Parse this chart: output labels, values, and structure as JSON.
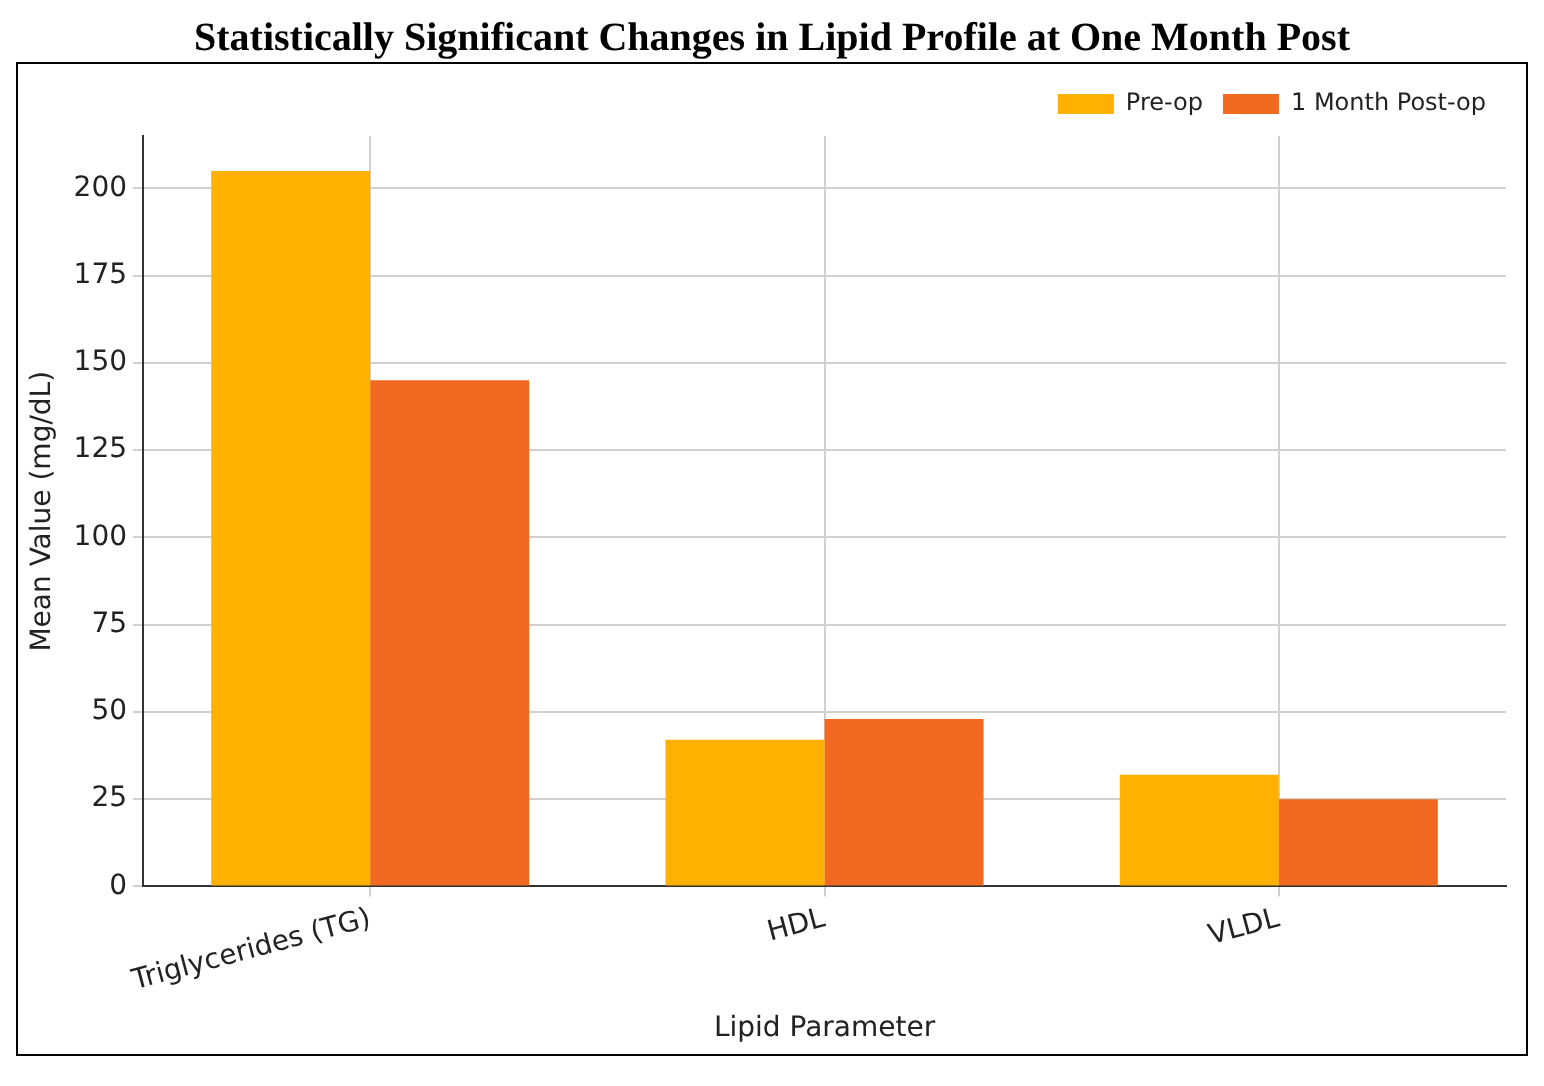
{
  "chart_data": {
    "type": "bar",
    "title": "Statistically Significant Changes in Lipid Profile at One Month Post",
    "xlabel": "Lipid Parameter",
    "ylabel": "Mean Value (mg/dL)",
    "categories": [
      "Triglycerides (TG)",
      "HDL",
      "VLDL"
    ],
    "series": [
      {
        "name": "Pre-op",
        "color": "#ffb000",
        "values": [
          205,
          42,
          32
        ]
      },
      {
        "name": "1 Month Post-op",
        "color": "#f26a21",
        "values": [
          145,
          48,
          25
        ]
      }
    ],
    "ylim": [
      0,
      215
    ],
    "yticks": [
      0,
      25,
      50,
      75,
      100,
      125,
      150,
      175,
      200
    ],
    "grid": true,
    "legend": "top right"
  }
}
